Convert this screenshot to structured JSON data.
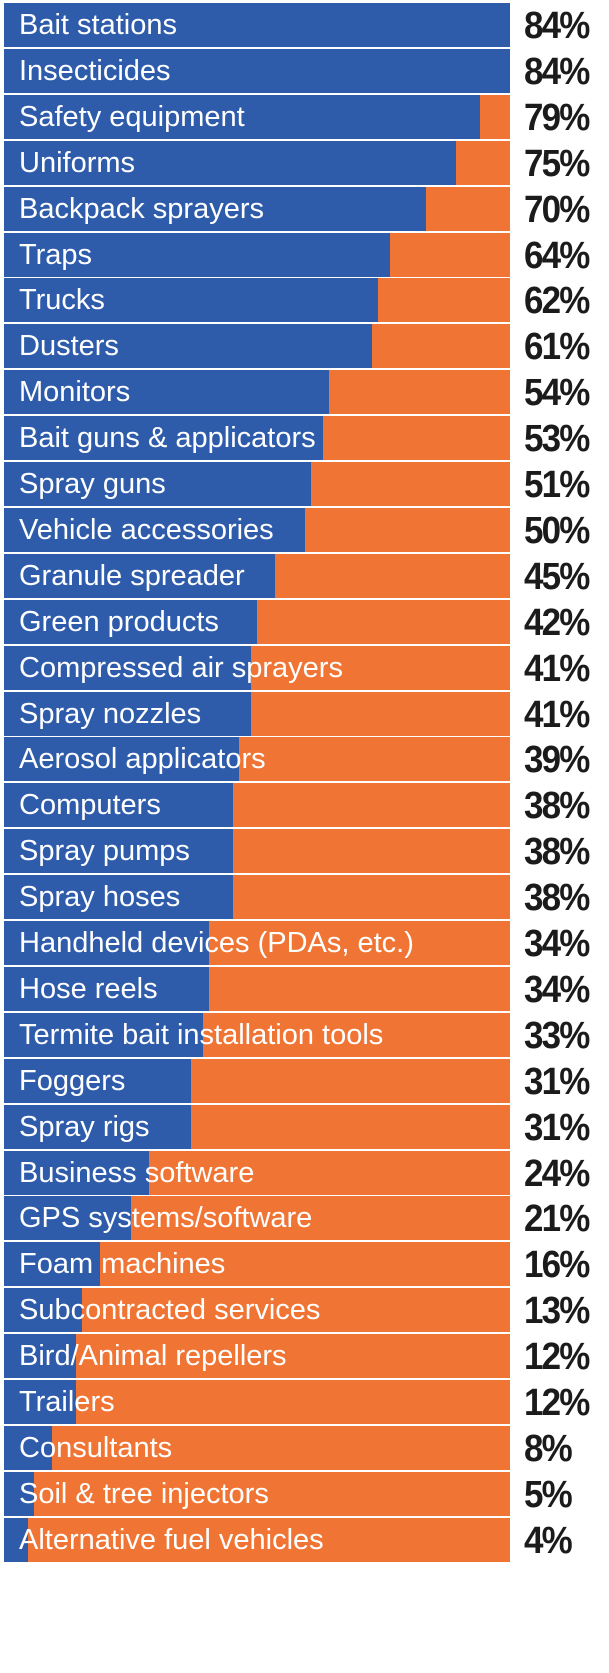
{
  "chart_data": {
    "type": "bar",
    "orientation": "horizontal",
    "stacked_to_100": true,
    "value_unit": "%",
    "title": "",
    "xlabel": "",
    "ylabel": "",
    "xlim": [
      0,
      100
    ],
    "grid": false,
    "legend": "none",
    "colors": {
      "value": "#2e5cab",
      "remainder": "#f07433"
    },
    "categories": [
      "Bait stations",
      "Insecticides",
      "Safety equipment",
      "Uniforms",
      "Backpack sprayers",
      "Traps",
      "Trucks",
      "Dusters",
      "Monitors",
      "Bait guns & applicators",
      "Spray guns",
      "Vehicle accessories",
      "Granule spreader",
      "Green products",
      "Compressed air sprayers",
      "Spray nozzles",
      "Aerosol applicators",
      "Computers",
      "Spray pumps",
      "Spray hoses",
      "Handheld devices (PDAs, etc.)",
      "Hose reels",
      "Termite bait installation tools",
      "Foggers",
      "Spray rigs",
      "Business software",
      "GPS systems/software",
      "Foam machines",
      "Subcontracted services",
      "Bird/Animal repellers",
      "Trailers",
      "Consultants",
      "Soil & tree injectors",
      "Alternative fuel vehicles"
    ],
    "values": [
      84,
      84,
      79,
      75,
      70,
      64,
      62,
      61,
      54,
      53,
      51,
      50,
      45,
      42,
      41,
      41,
      39,
      38,
      38,
      38,
      34,
      34,
      33,
      31,
      31,
      24,
      21,
      16,
      13,
      12,
      12,
      8,
      5,
      4
    ],
    "value_labels": [
      "84%",
      "84%",
      "79%",
      "75%",
      "70%",
      "64%",
      "62%",
      "61%",
      "54%",
      "53%",
      "51%",
      "50%",
      "45%",
      "42%",
      "41%",
      "41%",
      "39%",
      "38%",
      "38%",
      "38%",
      "34%",
      "34%",
      "33%",
      "31%",
      "31%",
      "24%",
      "21%",
      "16%",
      "13%",
      "12%",
      "12%",
      "8%",
      "5%",
      "4%"
    ]
  }
}
